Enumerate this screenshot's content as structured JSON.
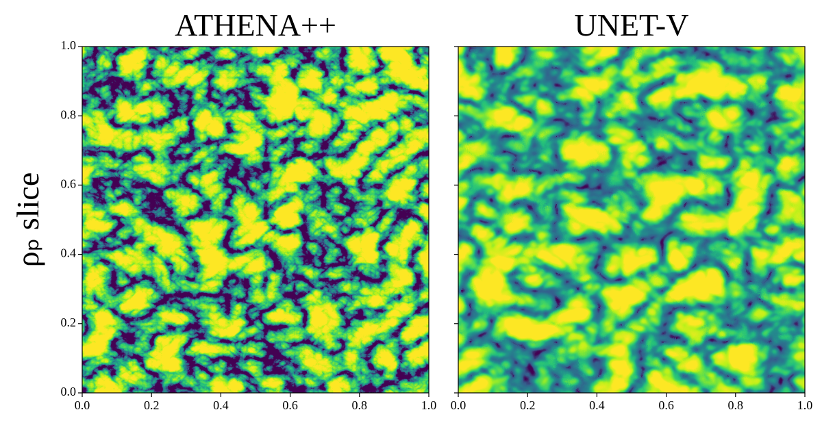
{
  "chart_data": [
    {
      "type": "heatmap",
      "title": "ATHENA++",
      "ylabel": "ρₚ slice",
      "xlim": [
        0,
        1
      ],
      "ylim": [
        0,
        1
      ],
      "xticks": [
        {
          "value": 0,
          "label": "0.0"
        },
        0.2,
        0.4,
        0.6,
        0.8,
        {
          "value": 1,
          "label": "1.0"
        }
      ],
      "yticks": [
        {
          "value": 0,
          "label": "0.0"
        },
        0.2,
        0.4,
        0.6,
        0.8,
        {
          "value": 1,
          "label": "1.0"
        }
      ],
      "colormap": "viridis"
    },
    {
      "type": "heatmap",
      "title": "UNET-V",
      "sharey": true,
      "xlim": [
        0,
        1
      ],
      "ylim": [
        0,
        1
      ],
      "xticks": [
        {
          "value": 0,
          "label": "0.0"
        },
        0.2,
        0.4,
        0.6,
        0.8,
        {
          "value": 1,
          "label": "1.0"
        }
      ],
      "yticks": [
        0,
        0.2,
        0.4,
        0.6,
        0.8,
        1
      ],
      "colormap": "viridis"
    }
  ]
}
